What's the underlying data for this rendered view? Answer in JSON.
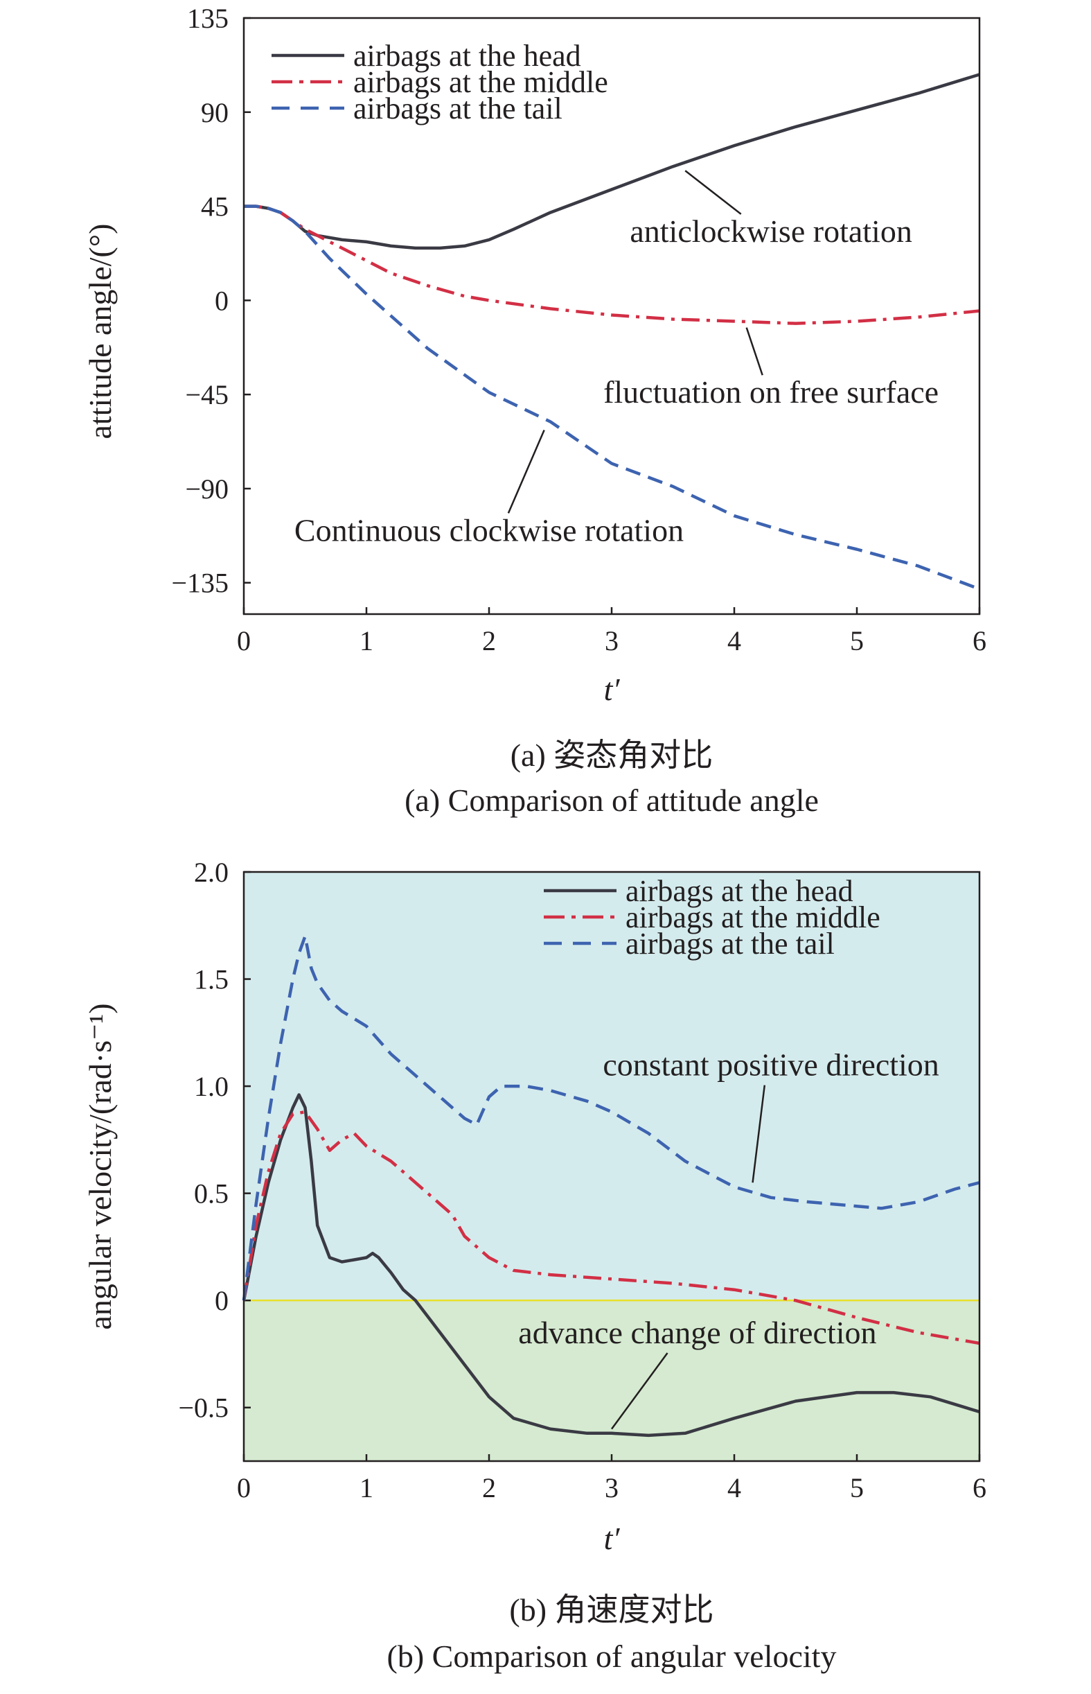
{
  "chart_data": [
    {
      "type": "line",
      "title": "",
      "xlabel": "t′",
      "ylabel": "attitude angle/(°)",
      "xlim": [
        0,
        6
      ],
      "ylim": [
        -150,
        135
      ],
      "xticks": [
        0,
        1,
        2,
        3,
        4,
        5,
        6
      ],
      "xtick_labels": [
        "0",
        "1",
        "2",
        "3",
        "4",
        "5",
        "6"
      ],
      "yticks": [
        135,
        90,
        45,
        0,
        -45,
        -90,
        -135
      ],
      "ytick_labels": [
        "135",
        "90",
        "45",
        "0",
        "−45",
        "−90",
        "−135"
      ],
      "grid": false,
      "legend_position": "top-left",
      "series": [
        {
          "name": "airbags at the head",
          "color": "#3a3a44",
          "dash": "solid",
          "x": [
            0,
            0.1,
            0.2,
            0.3,
            0.4,
            0.5,
            0.6,
            0.8,
            1.0,
            1.2,
            1.4,
            1.6,
            1.8,
            2.0,
            2.2,
            2.5,
            3.0,
            3.5,
            4.0,
            4.5,
            5.0,
            5.5,
            6.0
          ],
          "y": [
            45,
            45,
            44,
            42,
            38,
            33,
            31,
            29,
            28,
            26,
            25,
            25,
            26,
            29,
            34,
            42,
            53,
            64,
            74,
            83,
            91,
            99,
            108
          ]
        },
        {
          "name": "airbags at the middle",
          "color": "#d22f45",
          "dash": "dashdot",
          "x": [
            0,
            0.1,
            0.2,
            0.3,
            0.4,
            0.5,
            0.6,
            0.8,
            1.0,
            1.2,
            1.5,
            1.8,
            2.0,
            2.5,
            3.0,
            3.5,
            4.0,
            4.5,
            5.0,
            5.5,
            6.0
          ],
          "y": [
            45,
            45,
            44,
            42,
            38,
            34,
            31,
            25,
            19,
            13,
            7,
            2,
            0,
            -4,
            -7,
            -9,
            -10,
            -11,
            -10,
            -8,
            -5
          ]
        },
        {
          "name": "airbags at the tail",
          "color": "#3d63b0",
          "dash": "dashed",
          "x": [
            0,
            0.1,
            0.2,
            0.3,
            0.4,
            0.5,
            0.7,
            1.0,
            1.5,
            2.0,
            2.5,
            3.0,
            3.5,
            4.0,
            4.5,
            5.0,
            5.5,
            6.0
          ],
          "y": [
            45,
            45,
            44,
            42,
            38,
            33,
            20,
            3,
            -23,
            -44,
            -58,
            -78,
            -89,
            -103,
            -112,
            -119,
            -127,
            -138
          ]
        }
      ],
      "annotations": [
        {
          "text": "anticlockwise rotation",
          "x": 4.3,
          "y": 28,
          "x_to": 3.6,
          "y_to": 62
        },
        {
          "text": "fluctuation on free surface",
          "x": 4.3,
          "y": -49,
          "x_to": 4.1,
          "y_to": -13
        },
        {
          "text": "Continuous clockwise rotation",
          "x": 2.0,
          "y": -115,
          "x_to": 2.45,
          "y_to": -62
        }
      ],
      "caption_cn": "(a) 姿态角对比",
      "caption_en": "(a) Comparison of attitude angle"
    },
    {
      "type": "line",
      "title": "",
      "xlabel": "t′",
      "ylabel": "angular velocity/(rad·s⁻¹)",
      "xlim": [
        0,
        6
      ],
      "ylim": [
        -0.75,
        2.0
      ],
      "xticks": [
        0,
        1,
        2,
        3,
        4,
        5,
        6
      ],
      "xtick_labels": [
        "0",
        "1",
        "2",
        "3",
        "4",
        "5",
        "6"
      ],
      "yticks": [
        2.0,
        1.5,
        1.0,
        0.5,
        0,
        -0.5
      ],
      "ytick_labels": [
        "2.0",
        "1.5",
        "1.0",
        "0.5",
        "0",
        "−0.5"
      ],
      "grid": false,
      "legend_position": "top-right",
      "positive_region_color": "#d4ebed",
      "negative_region_color": "#d5ead0",
      "zero_line_color": "#e8e02a",
      "series": [
        {
          "name": "airbags at the head",
          "color": "#3a3a44",
          "dash": "solid",
          "x": [
            0,
            0.1,
            0.2,
            0.3,
            0.4,
            0.45,
            0.5,
            0.55,
            0.6,
            0.7,
            0.8,
            0.9,
            1.0,
            1.05,
            1.1,
            1.2,
            1.3,
            1.4,
            1.6,
            1.8,
            2.0,
            2.2,
            2.5,
            2.8,
            3.0,
            3.3,
            3.6,
            4.0,
            4.5,
            5.0,
            5.3,
            5.6,
            6.0
          ],
          "y": [
            0,
            0.3,
            0.55,
            0.75,
            0.9,
            0.96,
            0.9,
            0.65,
            0.35,
            0.2,
            0.18,
            0.19,
            0.2,
            0.22,
            0.2,
            0.13,
            0.05,
            0.0,
            -0.15,
            -0.3,
            -0.45,
            -0.55,
            -0.6,
            -0.62,
            -0.62,
            -0.63,
            -0.62,
            -0.55,
            -0.47,
            -0.43,
            -0.43,
            -0.45,
            -0.52
          ]
        },
        {
          "name": "airbags at the middle",
          "color": "#d22f45",
          "dash": "dashdot",
          "x": [
            0,
            0.1,
            0.2,
            0.3,
            0.4,
            0.5,
            0.6,
            0.7,
            0.8,
            0.9,
            1.0,
            1.2,
            1.5,
            1.7,
            1.8,
            2.0,
            2.2,
            2.5,
            3.0,
            3.5,
            4.0,
            4.5,
            5.0,
            5.5,
            6.0
          ],
          "y": [
            0,
            0.35,
            0.6,
            0.78,
            0.87,
            0.88,
            0.8,
            0.7,
            0.75,
            0.78,
            0.72,
            0.65,
            0.5,
            0.4,
            0.3,
            0.2,
            0.14,
            0.12,
            0.1,
            0.08,
            0.05,
            0.0,
            -0.08,
            -0.15,
            -0.2
          ]
        },
        {
          "name": "airbags at the tail",
          "color": "#3d63b0",
          "dash": "dashed",
          "x": [
            0,
            0.1,
            0.2,
            0.3,
            0.4,
            0.45,
            0.5,
            0.55,
            0.6,
            0.7,
            0.8,
            1.0,
            1.2,
            1.4,
            1.6,
            1.8,
            1.9,
            2.0,
            2.1,
            2.3,
            2.5,
            2.8,
            3.0,
            3.3,
            3.6,
            4.0,
            4.3,
            4.6,
            5.0,
            5.2,
            5.5,
            5.8,
            6.0
          ],
          "y": [
            0,
            0.45,
            0.85,
            1.2,
            1.5,
            1.62,
            1.7,
            1.55,
            1.48,
            1.4,
            1.35,
            1.28,
            1.15,
            1.05,
            0.95,
            0.85,
            0.82,
            0.95,
            1.0,
            1.0,
            0.98,
            0.93,
            0.88,
            0.78,
            0.65,
            0.53,
            0.48,
            0.46,
            0.44,
            0.43,
            0.46,
            0.52,
            0.55
          ]
        }
      ],
      "annotations": [
        {
          "text": "constant positive direction",
          "x": 4.3,
          "y": 1.05,
          "x_to": 4.15,
          "y_to": 0.55
        },
        {
          "text": "advance change of direction",
          "x": 3.7,
          "y": -0.2,
          "x_to": 3.0,
          "y_to": -0.6
        }
      ],
      "caption_cn": "(b) 角速度对比",
      "caption_en": "(b) Comparison of angular velocity"
    }
  ]
}
